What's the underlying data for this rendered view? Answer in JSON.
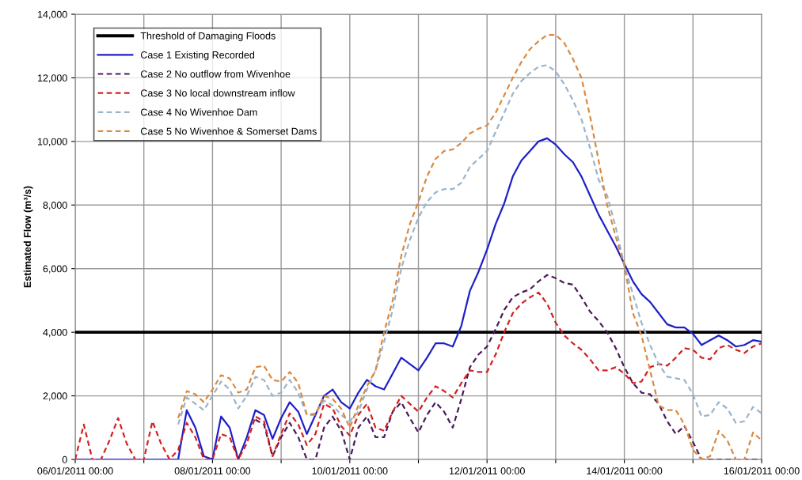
{
  "chart_data": {
    "type": "line",
    "ylabel": "Estimated Flow (m³/s)",
    "x": [
      "2011-01-06T00:00",
      "2011-01-06T03:00",
      "2011-01-06T06:00",
      "2011-01-06T09:00",
      "2011-01-06T12:00",
      "2011-01-06T15:00",
      "2011-01-06T18:00",
      "2011-01-06T21:00",
      "2011-01-07T00:00",
      "2011-01-07T03:00",
      "2011-01-07T06:00",
      "2011-01-07T09:00",
      "2011-01-07T12:00",
      "2011-01-07T15:00",
      "2011-01-07T18:00",
      "2011-01-07T21:00",
      "2011-01-08T00:00",
      "2011-01-08T03:00",
      "2011-01-08T06:00",
      "2011-01-08T09:00",
      "2011-01-08T12:00",
      "2011-01-08T15:00",
      "2011-01-08T18:00",
      "2011-01-08T21:00",
      "2011-01-09T00:00",
      "2011-01-09T03:00",
      "2011-01-09T06:00",
      "2011-01-09T09:00",
      "2011-01-09T12:00",
      "2011-01-09T15:00",
      "2011-01-09T18:00",
      "2011-01-09T21:00",
      "2011-01-10T00:00",
      "2011-01-10T03:00",
      "2011-01-10T06:00",
      "2011-01-10T09:00",
      "2011-01-10T12:00",
      "2011-01-10T15:00",
      "2011-01-10T18:00",
      "2011-01-10T21:00",
      "2011-01-11T00:00",
      "2011-01-11T03:00",
      "2011-01-11T06:00",
      "2011-01-11T09:00",
      "2011-01-11T12:00",
      "2011-01-11T15:00",
      "2011-01-11T18:00",
      "2011-01-11T21:00",
      "2011-01-12T00:00",
      "2011-01-12T03:00",
      "2011-01-12T06:00",
      "2011-01-12T09:00",
      "2011-01-12T12:00",
      "2011-01-12T15:00",
      "2011-01-12T18:00",
      "2011-01-12T21:00",
      "2011-01-13T00:00",
      "2011-01-13T03:00",
      "2011-01-13T06:00",
      "2011-01-13T09:00",
      "2011-01-13T12:00",
      "2011-01-13T15:00",
      "2011-01-13T18:00",
      "2011-01-13T21:00",
      "2011-01-14T00:00",
      "2011-01-14T03:00",
      "2011-01-14T06:00",
      "2011-01-14T09:00",
      "2011-01-14T12:00",
      "2011-01-14T15:00",
      "2011-01-14T18:00",
      "2011-01-14T21:00",
      "2011-01-15T00:00",
      "2011-01-15T03:00",
      "2011-01-15T06:00",
      "2011-01-15T09:00",
      "2011-01-15T12:00",
      "2011-01-15T15:00",
      "2011-01-15T18:00",
      "2011-01-15T21:00",
      "2011-01-16T00:00"
    ],
    "series": [
      {
        "name": "Case 1 Existing Recorded",
        "color": "#1f1fc8",
        "line_style": "solid",
        "values": [
          0,
          0,
          0,
          0,
          0,
          0,
          0,
          0,
          0,
          0,
          0,
          0,
          0,
          1550,
          1000,
          100,
          0,
          1350,
          1000,
          0,
          700,
          1550,
          1400,
          650,
          1300,
          1800,
          1500,
          800,
          1400,
          2000,
          2200,
          1800,
          1600,
          2100,
          2500,
          2300,
          2200,
          2700,
          3200,
          3000,
          2800,
          3200,
          3650,
          3650,
          3550,
          4200,
          5300,
          5900,
          6600,
          7400,
          8050,
          8900,
          9400,
          9700,
          10000,
          10100,
          9900,
          9600,
          9350,
          8900,
          8300,
          7700,
          7200,
          6700,
          6150,
          5600,
          5200,
          4950,
          4600,
          4250,
          4150,
          4150,
          3950,
          3600,
          3750,
          3900,
          3750,
          3550,
          3600,
          3750,
          3700
        ]
      },
      {
        "name": "Case 2 No outflow from Wivenhoe",
        "color": "#4b1a5a",
        "line_style": "dashed",
        "values": [
          null,
          null,
          null,
          null,
          null,
          null,
          null,
          null,
          null,
          null,
          null,
          null,
          null,
          null,
          null,
          null,
          null,
          null,
          null,
          null,
          null,
          1250,
          1100,
          100,
          700,
          1150,
          700,
          0,
          0,
          1000,
          1350,
          900,
          0,
          1000,
          1350,
          700,
          700,
          1500,
          1800,
          1300,
          850,
          1400,
          1800,
          1500,
          1000,
          1900,
          2900,
          3300,
          3550,
          4100,
          4700,
          5100,
          5250,
          5350,
          5600,
          5800,
          5700,
          5550,
          5500,
          5100,
          4650,
          4350,
          4000,
          3500,
          2900,
          2400,
          2100,
          2050,
          1750,
          1200,
          800,
          1050,
          550,
          0,
          0,
          0,
          0,
          0,
          0,
          0,
          0
        ]
      },
      {
        "name": "Case 3 No local downstream inflow",
        "color": "#d42020",
        "line_style": "dashed",
        "values": [
          0,
          1100,
          0,
          0,
          600,
          1300,
          500,
          0,
          0,
          1200,
          500,
          0,
          300,
          1150,
          700,
          0,
          0,
          800,
          700,
          0,
          500,
          1350,
          1200,
          100,
          800,
          1450,
          1100,
          450,
          800,
          1750,
          1600,
          1050,
          750,
          1400,
          1750,
          1000,
          900,
          1500,
          2000,
          1750,
          1500,
          1950,
          2300,
          2150,
          1950,
          2400,
          2800,
          2750,
          2750,
          3300,
          4000,
          4600,
          4900,
          5100,
          5250,
          4900,
          4300,
          3900,
          3650,
          3450,
          3150,
          2800,
          2800,
          2900,
          2700,
          2400,
          2450,
          2900,
          3000,
          2950,
          3200,
          3500,
          3450,
          3200,
          3150,
          3500,
          3600,
          3450,
          3350,
          3550,
          3650
        ]
      },
      {
        "name": "Case 4 No Wivenhoe Dam",
        "color": "#9ab4cc",
        "line_style": "dashed",
        "values": [
          null,
          null,
          null,
          null,
          null,
          null,
          null,
          null,
          null,
          null,
          null,
          null,
          1100,
          1950,
          1750,
          1550,
          2000,
          2450,
          2200,
          1600,
          2000,
          2600,
          2500,
          2000,
          2100,
          2500,
          2100,
          1400,
          1450,
          1850,
          1700,
          1400,
          1200,
          1500,
          2200,
          2800,
          3700,
          4700,
          6000,
          6900,
          7600,
          8100,
          8400,
          8500,
          8500,
          8700,
          9200,
          9450,
          9700,
          10300,
          10900,
          11500,
          11900,
          12150,
          12350,
          12400,
          12200,
          11800,
          11300,
          10700,
          9800,
          8800,
          8300,
          7300,
          6100,
          5200,
          4300,
          3600,
          3000,
          2600,
          2550,
          2500,
          2050,
          1350,
          1400,
          1800,
          1600,
          1150,
          1200,
          1650,
          1450
        ]
      },
      {
        "name": "Case 5 No Wivenhoe & Somerset Dams",
        "color": "#d98a40",
        "line_style": "dashed",
        "values": [
          null,
          null,
          null,
          null,
          null,
          null,
          null,
          null,
          null,
          null,
          null,
          null,
          1300,
          2150,
          2050,
          1800,
          2200,
          2650,
          2550,
          2100,
          2200,
          2900,
          2950,
          2500,
          2450,
          2750,
          2400,
          1400,
          1400,
          2000,
          1900,
          1600,
          1000,
          1700,
          2300,
          2800,
          4000,
          5000,
          6400,
          7400,
          8100,
          8900,
          9450,
          9700,
          9750,
          9950,
          10250,
          10400,
          10500,
          10900,
          11450,
          12000,
          12500,
          12900,
          13150,
          13350,
          13350,
          13100,
          12600,
          12000,
          10800,
          9400,
          8000,
          7000,
          6100,
          4600,
          3900,
          2800,
          1700,
          1550,
          1550,
          1100,
          300,
          0,
          100,
          900,
          600,
          0,
          0,
          850,
          600
        ]
      }
    ],
    "ref_lines": [
      {
        "axis": "y",
        "value": 4000,
        "label": "Threshold of Damaging Floods",
        "color": "#000000"
      }
    ],
    "xlim": [
      "2011-01-06T00:00",
      "2011-01-16T00:00"
    ],
    "xticks": [
      {
        "value": "2011-01-06T00:00",
        "label": "06/01/2011 00:00"
      },
      {
        "value": "2011-01-07T00:00",
        "label": null
      },
      {
        "value": "2011-01-08T00:00",
        "label": "08/01/2011 00:00"
      },
      {
        "value": "2011-01-09T00:00",
        "label": null
      },
      {
        "value": "2011-01-10T00:00",
        "label": "10/01/2011 00:00"
      },
      {
        "value": "2011-01-11T00:00",
        "label": null
      },
      {
        "value": "2011-01-12T00:00",
        "label": "12/01/2011 00:00"
      },
      {
        "value": "2011-01-13T00:00",
        "label": null
      },
      {
        "value": "2011-01-14T00:00",
        "label": "14/01/2011 00:00"
      },
      {
        "value": "2011-01-15T00:00",
        "label": null
      },
      {
        "value": "2011-01-16T00:00",
        "label": "16/01/2011 00:00"
      }
    ],
    "ylim": [
      0,
      14000
    ],
    "yticks": [
      0,
      {
        "value": 2000,
        "label": "2,000"
      },
      {
        "value": 4000,
        "label": "4,000"
      },
      {
        "value": 6000,
        "label": "6,000"
      },
      {
        "value": 8000,
        "label": "8,000"
      },
      {
        "value": 10000,
        "label": "10,000"
      },
      {
        "value": 12000,
        "label": "12,000"
      },
      {
        "value": 14000,
        "label": "14,000"
      }
    ],
    "grid": true,
    "legend": "top left",
    "marker": "none"
  }
}
